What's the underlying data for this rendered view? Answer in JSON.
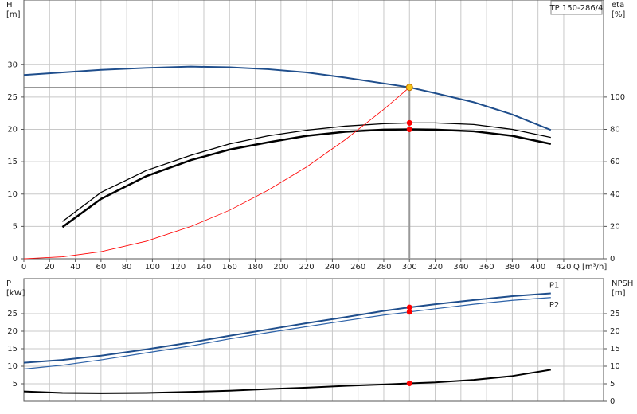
{
  "chart_data": [
    {
      "type": "line",
      "title": "TP 150-286/4",
      "y_label": "H",
      "y_unit": "[m]",
      "y2_label": "eta",
      "y2_unit": "[%]",
      "x_label": "Q [m³/h]",
      "xlim": [
        0,
        451
      ],
      "ylim": [
        0,
        40
      ],
      "y2lim": [
        0,
        160
      ],
      "xticks": [
        0,
        20,
        40,
        60,
        80,
        100,
        120,
        140,
        160,
        180,
        200,
        220,
        240,
        260,
        280,
        300,
        320,
        340,
        360,
        380,
        400,
        420
      ],
      "yticks": [
        0,
        5,
        10,
        15,
        20,
        25,
        30
      ],
      "y2ticks": [
        0,
        20,
        40,
        60,
        80,
        100
      ],
      "grid": true,
      "show_xticks": true,
      "duty_point": {
        "x": 300,
        "y": 26.5,
        "color": "#f5c518"
      },
      "series": [
        {
          "color": "#1f4e8c",
          "width": 2,
          "x": [
            0,
            30,
            60,
            95,
            130,
            160,
            190,
            220,
            250,
            280,
            300,
            320,
            350,
            380,
            410
          ],
          "values": [
            28.4,
            28.8,
            29.2,
            29.5,
            29.7,
            29.6,
            29.3,
            28.8,
            28.0,
            27.1,
            26.5,
            25.6,
            24.2,
            22.3,
            19.9
          ]
        },
        {
          "color": "#000000",
          "width": 1.3,
          "axis": "y2",
          "x": [
            30,
            60,
            95,
            130,
            160,
            190,
            220,
            250,
            280,
            300,
            320,
            350,
            380,
            410
          ],
          "values": [
            23,
            41,
            54.5,
            64,
            71,
            76,
            79.5,
            82,
            83.5,
            84,
            84,
            83,
            80,
            75
          ]
        },
        {
          "color": "#000000",
          "width": 2.5,
          "axis": "y2",
          "x": [
            30,
            60,
            95,
            130,
            160,
            190,
            220,
            250,
            280,
            300,
            320,
            350,
            380,
            410
          ],
          "values": [
            19.6,
            37,
            51,
            61,
            67.5,
            72,
            76,
            78.5,
            79.8,
            80,
            79.8,
            78.8,
            76,
            71
          ]
        },
        {
          "color": "#ff0000",
          "width": 0.8,
          "x": [
            0,
            30,
            60,
            95,
            130,
            160,
            190,
            220,
            250,
            280,
            300
          ],
          "values": [
            0,
            0.3,
            1.1,
            2.7,
            5,
            7.5,
            10.6,
            14.2,
            18.4,
            23.1,
            26.5
          ]
        }
      ],
      "points": [
        {
          "x": 300,
          "y": 84,
          "axis": "y2",
          "color": "#ff0000"
        },
        {
          "x": 300,
          "y": 80,
          "axis": "y2",
          "color": "#ff0000"
        }
      ]
    },
    {
      "type": "line",
      "y_label": "P",
      "y_unit": "[kW]",
      "y2_label": "NPSH",
      "y2_unit": "[m]",
      "xlim": [
        0,
        451
      ],
      "ylim": [
        0,
        35
      ],
      "y2lim": [
        0,
        35
      ],
      "xticks": [
        0,
        20,
        40,
        60,
        80,
        100,
        120,
        140,
        160,
        180,
        200,
        220,
        240,
        260,
        280,
        300,
        320,
        340,
        360,
        380,
        400,
        420
      ],
      "yticks": [
        5,
        10,
        15,
        20,
        25
      ],
      "y2ticks": [
        0,
        5,
        10,
        15,
        20,
        25
      ],
      "grid": true,
      "show_xticks": false,
      "series": [
        {
          "name": "P1",
          "color": "#1f4e8c",
          "width": 2,
          "x": [
            0,
            30,
            60,
            95,
            130,
            160,
            190,
            220,
            250,
            280,
            300,
            320,
            350,
            380,
            410
          ],
          "values": [
            11,
            11.8,
            13,
            14.8,
            16.8,
            18.7,
            20.5,
            22.3,
            24,
            25.8,
            26.8,
            27.7,
            28.9,
            30,
            30.8
          ]
        },
        {
          "name": "P2",
          "color": "#2d62a8",
          "width": 1.2,
          "x": [
            0,
            30,
            60,
            95,
            130,
            160,
            190,
            220,
            250,
            280,
            300,
            320,
            350,
            380,
            410
          ],
          "values": [
            9.2,
            10.3,
            11.8,
            13.8,
            15.8,
            17.8,
            19.6,
            21.3,
            23,
            24.6,
            25.5,
            26.4,
            27.7,
            28.8,
            29.6
          ]
        },
        {
          "color": "#000000",
          "width": 2,
          "axis": "y2",
          "x": [
            0,
            30,
            60,
            95,
            130,
            160,
            190,
            220,
            250,
            280,
            300,
            320,
            350,
            380,
            410
          ],
          "values": [
            2.8,
            2.4,
            2.3,
            2.4,
            2.7,
            3.0,
            3.5,
            3.9,
            4.4,
            4.8,
            5.1,
            5.4,
            6.1,
            7.2,
            9.0
          ]
        }
      ],
      "points": [
        {
          "x": 300,
          "y": 26.8,
          "color": "#ff0000"
        },
        {
          "x": 300,
          "y": 25.5,
          "color": "#ff0000"
        },
        {
          "x": 300,
          "y": 5.1,
          "axis": "y2",
          "color": "#ff0000"
        }
      ]
    }
  ]
}
